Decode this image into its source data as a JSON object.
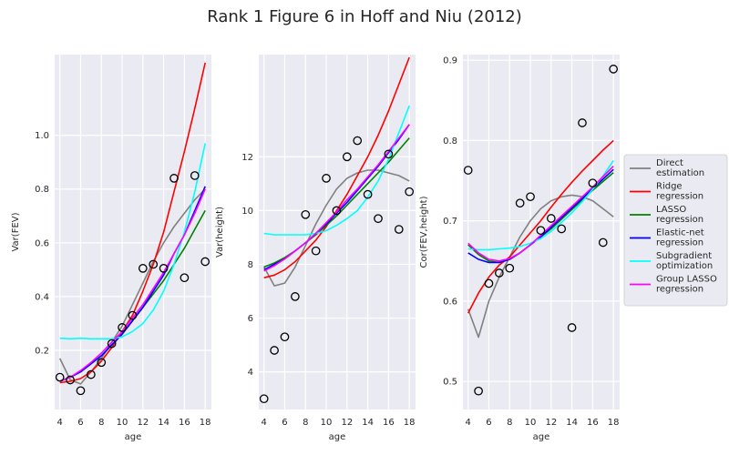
{
  "title": "Rank 1 Figure 6 in Hoff and Niu (2012)",
  "legend": {
    "placement": "right",
    "entries": [
      {
        "lines": [
          "Direct",
          "estimation"
        ],
        "color": "#808080"
      },
      {
        "lines": [
          "Ridge",
          "regression"
        ],
        "color": "#ff0000"
      },
      {
        "lines": [
          "LASSO",
          "regression"
        ],
        "color": "#008000"
      },
      {
        "lines": [
          "Elastic-net",
          "regression"
        ],
        "color": "#0000ff"
      },
      {
        "lines": [
          "Subgradient",
          "optimization"
        ],
        "color": "#00ffff"
      },
      {
        "lines": [
          "Group LASSO",
          "regression"
        ],
        "color": "#ff00ff"
      }
    ]
  },
  "chart_data": [
    {
      "type": "line",
      "xlabel": "age",
      "ylabel": "Var(FEV)",
      "grid": true,
      "xlim": [
        3.5,
        18.6
      ],
      "ylim": [
        -0.02,
        1.3
      ],
      "xticks": [
        4,
        6,
        8,
        10,
        12,
        14,
        16,
        18
      ],
      "yticks": [
        0.2,
        0.4,
        0.6,
        0.8,
        1.0
      ],
      "ytick_labels": [
        "0.2",
        "0.4",
        "0.6",
        "0.8",
        "1.0"
      ],
      "points": {
        "x": [
          4,
          5,
          6,
          7,
          8,
          9,
          10,
          11,
          12,
          13,
          14,
          15,
          16,
          17,
          18
        ],
        "y": [
          0.1,
          0.09,
          0.05,
          0.11,
          0.155,
          0.225,
          0.285,
          0.33,
          0.505,
          0.52,
          0.505,
          0.84,
          0.47,
          0.85,
          0.53
        ]
      },
      "series": [
        {
          "name": "Direct estimation",
          "x": [
            4,
            5,
            6,
            7,
            8,
            9,
            10,
            11,
            12,
            13,
            14,
            15,
            16,
            17,
            18
          ],
          "y": [
            0.17,
            0.09,
            0.075,
            0.12,
            0.17,
            0.23,
            0.29,
            0.37,
            0.45,
            0.53,
            0.6,
            0.66,
            0.71,
            0.76,
            0.8
          ]
        },
        {
          "name": "Ridge regression",
          "x": [
            4,
            5,
            6,
            7,
            8,
            9,
            10,
            11,
            12,
            13,
            14,
            15,
            16,
            17,
            18
          ],
          "y": [
            0.08,
            0.085,
            0.095,
            0.12,
            0.16,
            0.21,
            0.27,
            0.33,
            0.42,
            0.52,
            0.64,
            0.79,
            0.94,
            1.1,
            1.27
          ]
        },
        {
          "name": "LASSO regression",
          "x": [
            4,
            5,
            6,
            7,
            8,
            9,
            10,
            11,
            12,
            13,
            14,
            15,
            16,
            17,
            18
          ],
          "y": [
            0.085,
            0.1,
            0.12,
            0.15,
            0.18,
            0.22,
            0.26,
            0.31,
            0.36,
            0.41,
            0.46,
            0.52,
            0.58,
            0.65,
            0.72
          ]
        },
        {
          "name": "Elastic-net regression",
          "x": [
            4,
            5,
            6,
            7,
            8,
            9,
            10,
            11,
            12,
            13,
            14,
            15,
            16,
            17,
            18
          ],
          "y": [
            0.085,
            0.1,
            0.12,
            0.15,
            0.18,
            0.22,
            0.26,
            0.31,
            0.36,
            0.42,
            0.48,
            0.56,
            0.63,
            0.72,
            0.81
          ]
        },
        {
          "name": "Subgradient optimization",
          "x": [
            4,
            5,
            6,
            7,
            8,
            9,
            10,
            11,
            12,
            13,
            14,
            15,
            16,
            17,
            18
          ],
          "y": [
            0.245,
            0.243,
            0.245,
            0.243,
            0.243,
            0.243,
            0.25,
            0.27,
            0.3,
            0.35,
            0.42,
            0.52,
            0.64,
            0.79,
            0.97
          ]
        },
        {
          "name": "Group LASSO regression",
          "x": [
            4,
            5,
            6,
            7,
            8,
            9,
            10,
            11,
            12,
            13,
            14,
            15,
            16,
            17,
            18
          ],
          "y": [
            0.085,
            0.1,
            0.125,
            0.155,
            0.19,
            0.23,
            0.27,
            0.32,
            0.37,
            0.43,
            0.49,
            0.56,
            0.63,
            0.71,
            0.8
          ]
        }
      ]
    },
    {
      "type": "line",
      "xlabel": "age",
      "ylabel": "Var(height)",
      "grid": true,
      "xlim": [
        3.5,
        18.6
      ],
      "ylim": [
        2.6,
        15.8
      ],
      "xticks": [
        4,
        6,
        8,
        10,
        12,
        14,
        16,
        18
      ],
      "yticks": [
        4,
        6,
        8,
        10,
        12
      ],
      "ytick_labels": [
        "4",
        "6",
        "8",
        "10",
        "12"
      ],
      "points": {
        "x": [
          4,
          5,
          6,
          7,
          8,
          9,
          10,
          11,
          12,
          13,
          14,
          15,
          16,
          17,
          18
        ],
        "y": [
          3.0,
          4.8,
          5.3,
          6.8,
          9.85,
          8.5,
          11.2,
          10.0,
          12.0,
          12.6,
          10.6,
          9.7,
          12.1,
          9.3,
          10.7
        ]
      },
      "series": [
        {
          "name": "Direct estimation",
          "x": [
            4,
            5,
            6,
            7,
            8,
            9,
            10,
            11,
            12,
            13,
            14,
            15,
            16,
            17,
            18
          ],
          "y": [
            7.9,
            7.2,
            7.3,
            7.9,
            8.7,
            9.5,
            10.2,
            10.8,
            11.2,
            11.4,
            11.5,
            11.5,
            11.4,
            11.3,
            11.1
          ]
        },
        {
          "name": "Ridge regression",
          "x": [
            4,
            5,
            6,
            7,
            8,
            9,
            10,
            11,
            12,
            13,
            14,
            15,
            16,
            17,
            18
          ],
          "y": [
            7.5,
            7.6,
            7.8,
            8.1,
            8.5,
            8.9,
            9.4,
            10.0,
            10.6,
            11.3,
            12.0,
            12.8,
            13.7,
            14.7,
            15.7
          ]
        },
        {
          "name": "LASSO regression",
          "x": [
            4,
            5,
            6,
            7,
            8,
            9,
            10,
            11,
            12,
            13,
            14,
            15,
            16,
            17,
            18
          ],
          "y": [
            7.9,
            8.05,
            8.25,
            8.5,
            8.8,
            9.1,
            9.45,
            9.8,
            10.2,
            10.6,
            11.0,
            11.4,
            11.8,
            12.25,
            12.7
          ]
        },
        {
          "name": "Elastic-net regression",
          "x": [
            4,
            5,
            6,
            7,
            8,
            9,
            10,
            11,
            12,
            13,
            14,
            15,
            16,
            17,
            18
          ],
          "y": [
            7.8,
            8.0,
            8.2,
            8.5,
            8.8,
            9.15,
            9.5,
            9.9,
            10.3,
            10.75,
            11.2,
            11.65,
            12.15,
            12.65,
            13.2
          ]
        },
        {
          "name": "Subgradient optimization",
          "x": [
            4,
            5,
            6,
            7,
            8,
            9,
            10,
            11,
            12,
            13,
            14,
            15,
            16,
            17,
            18
          ],
          "y": [
            9.15,
            9.1,
            9.1,
            9.1,
            9.1,
            9.15,
            9.25,
            9.45,
            9.7,
            10.0,
            10.5,
            11.1,
            11.9,
            12.9,
            13.9
          ]
        },
        {
          "name": "Group LASSO regression",
          "x": [
            4,
            5,
            6,
            7,
            8,
            9,
            10,
            11,
            12,
            13,
            14,
            15,
            16,
            17,
            18
          ],
          "y": [
            7.75,
            7.95,
            8.2,
            8.5,
            8.8,
            9.15,
            9.55,
            9.95,
            10.4,
            10.8,
            11.25,
            11.7,
            12.2,
            12.7,
            13.2
          ]
        }
      ]
    },
    {
      "type": "line",
      "xlabel": "age",
      "ylabel": "Cor(FEV,height)",
      "grid": true,
      "xlim": [
        3.5,
        18.6
      ],
      "ylim": [
        0.465,
        0.907
      ],
      "xticks": [
        4,
        6,
        8,
        10,
        12,
        14,
        16,
        18
      ],
      "yticks": [
        0.5,
        0.6,
        0.7,
        0.8,
        0.9
      ],
      "ytick_labels": [
        "0.5",
        "0.6",
        "0.7",
        "0.8",
        "0.9"
      ],
      "points": {
        "x": [
          4,
          5,
          6,
          7,
          8,
          9,
          10,
          11,
          12,
          13,
          14,
          15,
          16,
          17,
          18
        ],
        "y": [
          0.763,
          0.488,
          0.622,
          0.635,
          0.641,
          0.722,
          0.73,
          0.688,
          0.703,
          0.69,
          0.567,
          0.822,
          0.747,
          0.673,
          0.889
        ]
      },
      "series": [
        {
          "name": "Direct estimation",
          "x": [
            4,
            5,
            6,
            7,
            8,
            9,
            10,
            11,
            12,
            13,
            14,
            15,
            16,
            17,
            18
          ],
          "y": [
            0.59,
            0.555,
            0.6,
            0.63,
            0.655,
            0.68,
            0.7,
            0.715,
            0.725,
            0.73,
            0.732,
            0.73,
            0.725,
            0.715,
            0.705
          ]
        },
        {
          "name": "Ridge regression",
          "x": [
            4,
            5,
            6,
            7,
            8,
            9,
            10,
            11,
            12,
            13,
            14,
            15,
            16,
            17,
            18
          ],
          "y": [
            0.585,
            0.61,
            0.63,
            0.645,
            0.655,
            0.67,
            0.685,
            0.7,
            0.717,
            0.733,
            0.748,
            0.762,
            0.775,
            0.788,
            0.8
          ]
        },
        {
          "name": "LASSO regression",
          "x": [
            4,
            5,
            6,
            7,
            8,
            9,
            10,
            11,
            12,
            13,
            14,
            15,
            16,
            17,
            18
          ],
          "y": [
            0.67,
            0.658,
            0.65,
            0.648,
            0.652,
            0.66,
            0.67,
            0.68,
            0.69,
            0.702,
            0.714,
            0.726,
            0.738,
            0.749,
            0.76
          ]
        },
        {
          "name": "Elastic-net regression",
          "x": [
            4,
            5,
            6,
            7,
            8,
            9,
            10,
            11,
            12,
            13,
            14,
            15,
            16,
            17,
            18
          ],
          "y": [
            0.66,
            0.652,
            0.648,
            0.648,
            0.652,
            0.66,
            0.67,
            0.68,
            0.692,
            0.704,
            0.716,
            0.728,
            0.74,
            0.752,
            0.764
          ]
        },
        {
          "name": "Subgradient optimization",
          "x": [
            4,
            5,
            6,
            7,
            8,
            9,
            10,
            11,
            12,
            13,
            14,
            15,
            16,
            17,
            18
          ],
          "y": [
            0.665,
            0.664,
            0.664,
            0.665,
            0.666,
            0.668,
            0.672,
            0.678,
            0.687,
            0.698,
            0.71,
            0.724,
            0.739,
            0.756,
            0.775
          ]
        },
        {
          "name": "Group LASSO regression",
          "x": [
            4,
            5,
            6,
            7,
            8,
            9,
            10,
            11,
            12,
            13,
            14,
            15,
            16,
            17,
            18
          ],
          "y": [
            0.672,
            0.66,
            0.652,
            0.65,
            0.653,
            0.66,
            0.67,
            0.682,
            0.694,
            0.706,
            0.718,
            0.73,
            0.742,
            0.755,
            0.768
          ]
        }
      ]
    }
  ]
}
